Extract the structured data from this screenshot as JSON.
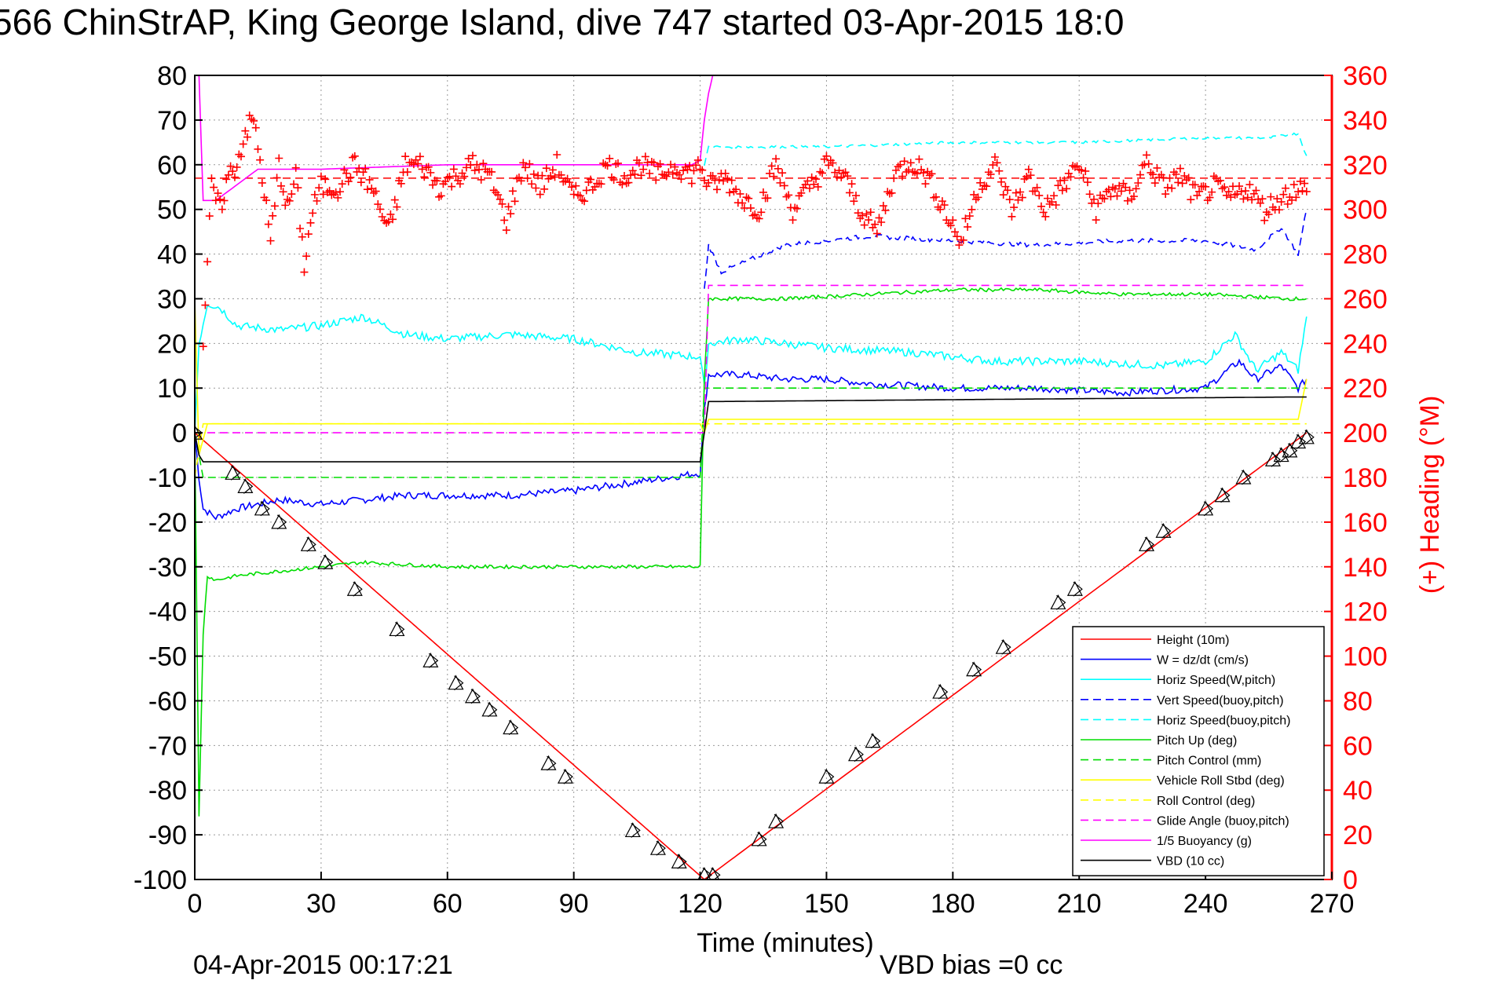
{
  "chart_data": {
    "type": "line",
    "title": "566 ChinStrAP, King George Island, dive 747 started 03-Apr-2015 18:0",
    "xlabel": "Time (minutes)",
    "ylabel_right": "(+) Heading (°M)",
    "xlim": [
      0,
      270
    ],
    "ylim_left": [
      -100,
      80
    ],
    "ylim_right": [
      0,
      360
    ],
    "x_ticks": [
      0,
      30,
      60,
      90,
      120,
      150,
      180,
      210,
      240,
      270
    ],
    "y_ticks_left": [
      80,
      70,
      60,
      50,
      40,
      30,
      20,
      10,
      0,
      -10,
      -20,
      -30,
      -40,
      -50,
      -60,
      -70,
      -80,
      -90,
      -100
    ],
    "y_ticks_right": [
      360,
      340,
      320,
      300,
      280,
      260,
      240,
      220,
      200,
      180,
      160,
      140,
      120,
      100,
      80,
      60,
      40,
      20,
      0
    ],
    "grid": true,
    "legend_position": "bottom-right",
    "footer_left": "04-Apr-2015 00:17:21",
    "footer_right": "VBD bias =0 cc",
    "colors": {
      "red": "#ff0000",
      "blue": "#0000ff",
      "cyan": "#00ffff",
      "green": "#00dd00",
      "yellow": "#ffff00",
      "magenta": "#ff00ff",
      "black": "#000000",
      "heading": "#ff0000"
    },
    "series": [
      {
        "name": "Height (10m)",
        "color": "#ff0000",
        "dash": "solid",
        "x": [
          0,
          121,
          264
        ],
        "y": [
          0,
          -100,
          0
        ]
      },
      {
        "name": "W = dz/dt (cm/s)",
        "color": "#0000ff",
        "dash": "solid",
        "x": [
          0,
          1,
          2,
          5,
          10,
          20,
          30,
          40,
          50,
          60,
          75,
          90,
          105,
          120,
          121,
          122,
          130,
          140,
          150,
          160,
          180,
          200,
          220,
          240,
          248,
          252,
          258,
          262,
          264
        ],
        "y": [
          0,
          -10,
          -17,
          -19,
          -17,
          -15,
          -16,
          -15,
          -14,
          -14,
          -14,
          -13,
          -11,
          -9,
          5,
          13,
          13,
          12,
          12,
          11,
          10,
          10,
          9,
          10,
          16,
          12,
          15,
          10,
          12
        ]
      },
      {
        "name": "Horiz Speed(W,pitch)",
        "color": "#00ffff",
        "dash": "solid",
        "x": [
          0,
          1,
          3,
          6,
          10,
          20,
          30,
          40,
          50,
          60,
          75,
          90,
          105,
          120,
          121,
          122,
          130,
          150,
          170,
          190,
          210,
          230,
          240,
          247,
          252,
          258,
          262,
          264
        ],
        "y": [
          0,
          20,
          29,
          28,
          24,
          23,
          24,
          26,
          22,
          21,
          22,
          21,
          18,
          17,
          10,
          20,
          21,
          19,
          18,
          16,
          16,
          15,
          16,
          22,
          14,
          18,
          14,
          26
        ]
      },
      {
        "name": "Vert Speed(buoy,pitch)",
        "color": "#0000ff",
        "dash": "dashed",
        "x": [
          121,
          122,
          125,
          140,
          160,
          180,
          200,
          220,
          240,
          252,
          258,
          262,
          264
        ],
        "y": [
          32,
          42,
          36,
          42,
          44,
          43,
          42,
          43,
          43,
          41,
          46,
          40,
          50
        ]
      },
      {
        "name": "Horiz Speed(buoy,pitch)",
        "color": "#00ffff",
        "dash": "dashed",
        "x": [
          121,
          122,
          150,
          180,
          210,
          240,
          255,
          262,
          264
        ],
        "y": [
          60,
          64,
          64,
          65,
          65,
          66,
          66,
          67,
          62
        ]
      },
      {
        "name": "Pitch Up (deg)",
        "color": "#00dd00",
        "dash": "solid",
        "x": [
          0,
          1,
          2,
          3,
          5,
          10,
          20,
          30,
          40,
          60,
          80,
          100,
          120,
          121,
          122,
          140,
          160,
          180,
          200,
          220,
          240,
          260,
          264
        ],
        "y": [
          0,
          -86,
          -45,
          -32,
          -33,
          -32,
          -31,
          -30,
          -29,
          -30,
          -30,
          -30,
          -30,
          12,
          30,
          30,
          31,
          32,
          32,
          31,
          31,
          30,
          30
        ]
      },
      {
        "name": "Pitch Control (mm)",
        "color": "#00dd00",
        "dash": "dashed",
        "x": [
          0,
          2,
          120,
          121,
          122,
          264
        ],
        "y": [
          0,
          -10,
          -10,
          10,
          10,
          10
        ]
      },
      {
        "name": "Vehicle Roll Stbd (deg)",
        "color": "#ffff00",
        "dash": "solid",
        "x": [
          0,
          1,
          3,
          60,
          120,
          121,
          122,
          180,
          240,
          262,
          264
        ],
        "y": [
          30,
          -5,
          2,
          2,
          2,
          0,
          3,
          3,
          3,
          3,
          12
        ]
      },
      {
        "name": "Roll Control (deg)",
        "color": "#ffff00",
        "dash": "dashed",
        "x": [
          0,
          2,
          120,
          121,
          264
        ],
        "y": [
          -10,
          2,
          2,
          2,
          2
        ]
      },
      {
        "name": "Glide Angle (buoy,pitch)",
        "color": "#ff00ff",
        "dash": "dashed",
        "x": [
          0,
          120,
          121,
          122,
          264
        ],
        "y": [
          0,
          0,
          0,
          33,
          33
        ]
      },
      {
        "name": "1/5 Buoyancy (g)",
        "color": "#ff00ff",
        "dash": "solid",
        "x": [
          1,
          2,
          5,
          15,
          30,
          60,
          90,
          118,
          120,
          121,
          122,
          123
        ],
        "y": [
          80,
          52,
          52,
          59,
          59,
          60,
          60,
          60,
          61,
          70,
          76,
          80
        ]
      },
      {
        "name": "VBD (10 cc)",
        "color": "#000000",
        "dash": "solid",
        "x": [
          0,
          1,
          2,
          5,
          120,
          121,
          122,
          125,
          260,
          261,
          264
        ],
        "y": [
          0,
          -5,
          -6.5,
          -6.5,
          -6.5,
          0,
          7,
          7,
          8,
          8,
          8
        ]
      }
    ],
    "heading": {
      "name": "Heading",
      "axis": "right",
      "color": "#ff0000",
      "marker": "+",
      "mean": 314,
      "x": [
        2,
        4,
        6,
        8,
        10,
        12,
        14,
        16,
        18,
        20,
        22,
        24,
        26,
        28,
        30,
        34,
        38,
        42,
        46,
        50,
        54,
        58,
        62,
        66,
        70,
        74,
        78,
        82,
        86,
        90,
        94,
        98,
        102,
        106,
        110,
        114,
        118,
        120,
        122,
        126,
        130,
        134,
        138,
        142,
        146,
        150,
        154,
        158,
        162,
        166,
        170,
        174,
        178,
        182,
        186,
        190,
        194,
        198,
        202,
        206,
        210,
        214,
        218,
        222,
        226,
        230,
        234,
        238,
        242,
        246,
        250,
        254,
        258,
        262,
        264
      ],
      "y": [
        240,
        310,
        300,
        315,
        320,
        335,
        340,
        315,
        285,
        320,
        300,
        315,
        275,
        300,
        310,
        310,
        320,
        310,
        290,
        320,
        320,
        310,
        315,
        320,
        315,
        295,
        320,
        310,
        320,
        305,
        310,
        320,
        315,
        320,
        315,
        320,
        316,
        320,
        310,
        314,
        305,
        300,
        320,
        300,
        310,
        320,
        315,
        300,
        290,
        315,
        322,
        315,
        300,
        285,
        310,
        320,
        300,
        315,
        300,
        310,
        320,
        300,
        310,
        305,
        322,
        310,
        315,
        305,
        310,
        305,
        310,
        300,
        305,
        310,
        308
      ]
    },
    "vbd_triangles": {
      "x": [
        0,
        9,
        12,
        16,
        20,
        27,
        31,
        38,
        48,
        56,
        62,
        66,
        70,
        75,
        84,
        88,
        104,
        110,
        115,
        121,
        123,
        134,
        138,
        150,
        157,
        161,
        177,
        185,
        192,
        205,
        209,
        226,
        230,
        240,
        244,
        249,
        256,
        258,
        260,
        262,
        264
      ],
      "y": [
        0,
        -9,
        -12,
        -17,
        -20,
        -25,
        -29,
        -35,
        -44,
        -51,
        -56,
        -59,
        -62,
        -66,
        -74,
        -77,
        -89,
        -93,
        -96,
        -99,
        -99,
        -91,
        -87,
        -77,
        -72,
        -69,
        -58,
        -53,
        -48,
        -38,
        -35,
        -25,
        -22,
        -17,
        -14,
        -10,
        -6,
        -5,
        -4,
        -2,
        -1
      ]
    }
  }
}
